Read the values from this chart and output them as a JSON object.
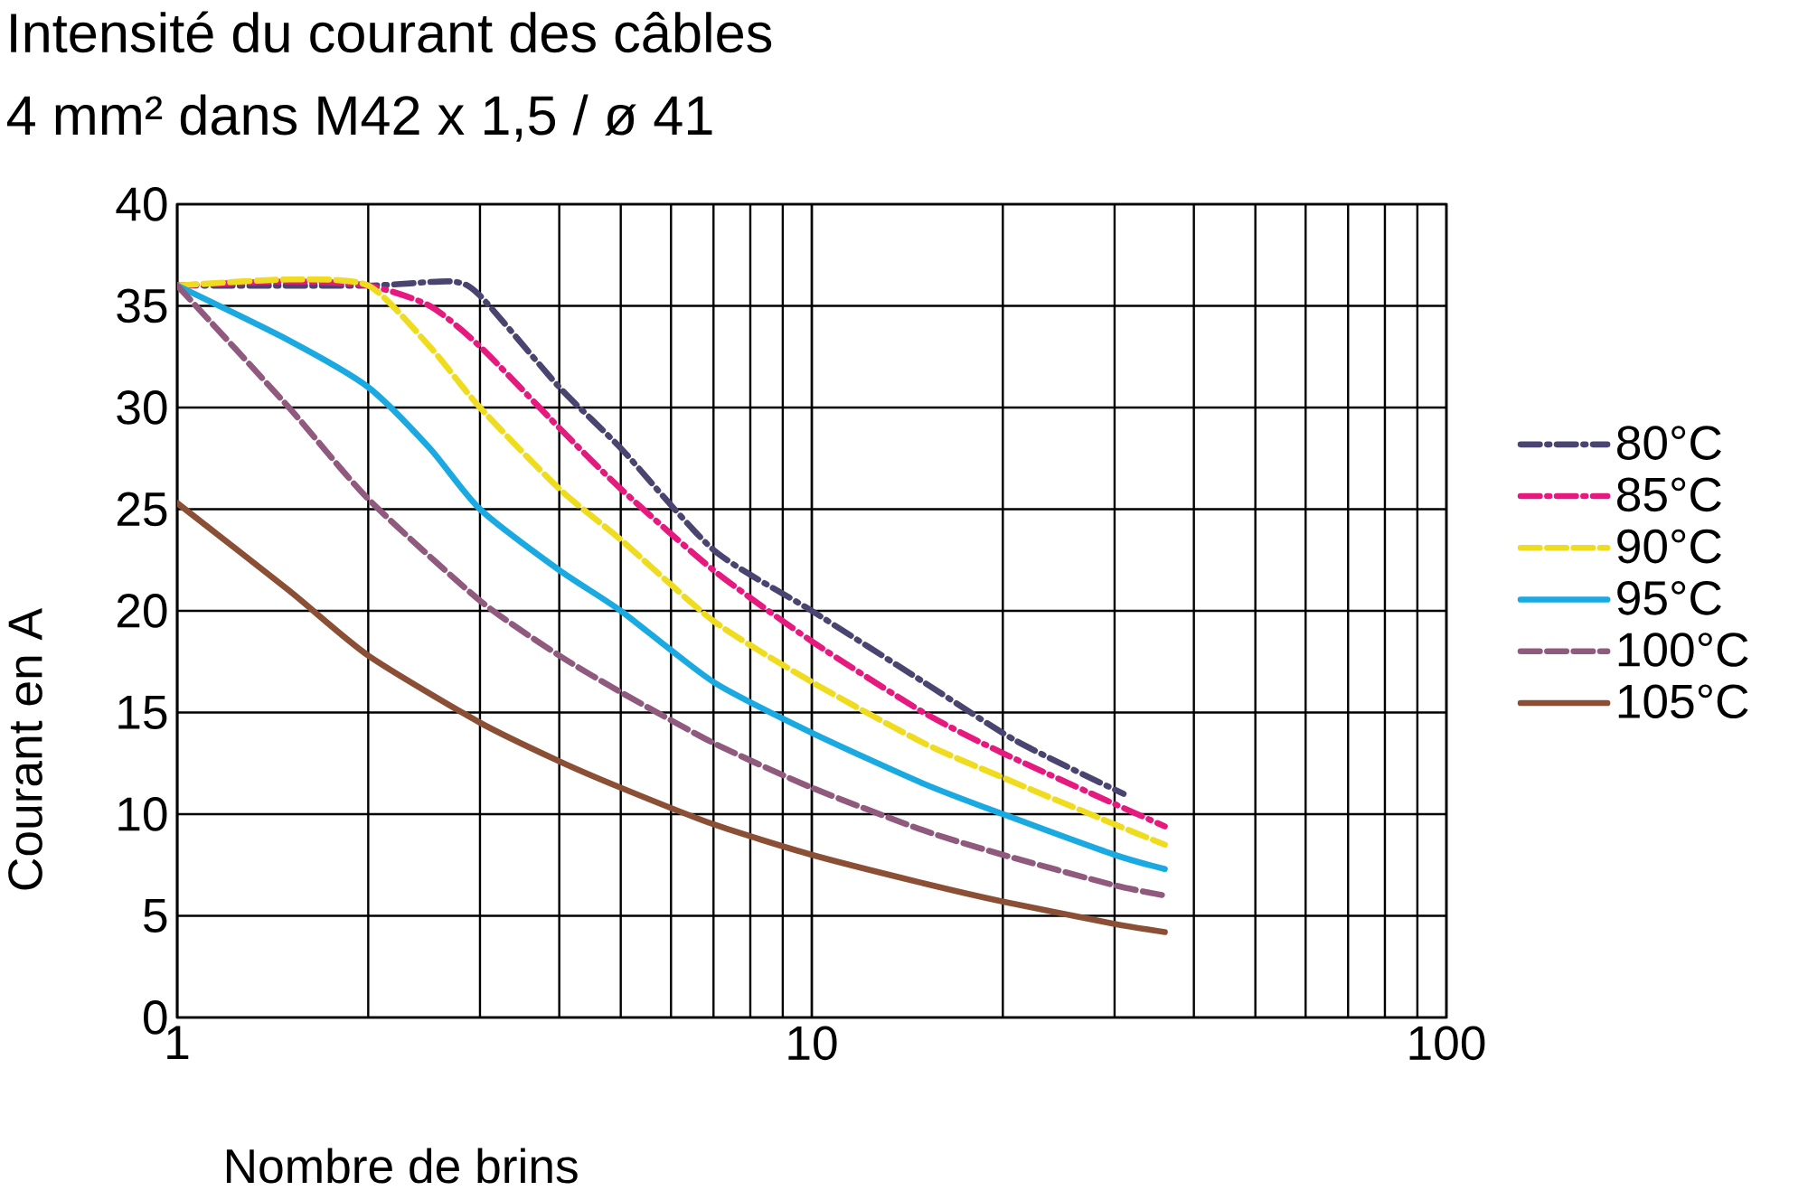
{
  "chart_data": {
    "type": "line",
    "title": "Intensité du courant des câbles",
    "subtitle": "4 mm² dans M42 x 1,5 / ø 41",
    "xlabel": "Nombre de brins",
    "ylabel": "Courant en A",
    "log": "x",
    "xlim": [
      1,
      100
    ],
    "xticks": [
      1,
      10,
      100
    ],
    "ylim": [
      0,
      40
    ],
    "yticks": [
      0,
      5,
      10,
      15,
      20,
      25,
      30,
      35,
      40
    ],
    "grid": true,
    "legend": "right",
    "series": [
      {
        "name": "80°C",
        "color": "#4a4570",
        "line_style": "dashdot",
        "x": [
          1,
          2,
          2.7,
          3,
          4,
          5,
          7,
          10,
          15,
          21,
          31
        ],
        "values": [
          36,
          36,
          36.2,
          35.5,
          31,
          28,
          23,
          20,
          16.5,
          13.6,
          11
        ]
      },
      {
        "name": "85°C",
        "color": "#e6197e",
        "line_style": "dashdot",
        "x": [
          1,
          1.5,
          2,
          2.5,
          3,
          4,
          5,
          7,
          10,
          15,
          20,
          30,
          36
        ],
        "values": [
          36,
          36.2,
          36,
          35,
          33,
          29,
          26,
          22,
          18.5,
          15,
          13,
          10.5,
          9.4
        ]
      },
      {
        "name": "90°C",
        "color": "#f0dc1e",
        "line_style": "dashed",
        "x": [
          1,
          1.5,
          2,
          2.5,
          3,
          4,
          5,
          7,
          10,
          15,
          20,
          30,
          36
        ],
        "values": [
          36,
          36.3,
          36,
          33,
          30,
          26,
          23.5,
          19.5,
          16.5,
          13.5,
          11.8,
          9.5,
          8.5
        ]
      },
      {
        "name": "95°C",
        "color": "#1ba9e1",
        "line_style": "solid",
        "x": [
          1,
          1.5,
          2,
          2.5,
          3,
          4,
          5,
          7,
          10,
          15,
          20,
          30,
          36
        ],
        "values": [
          36,
          33.3,
          31,
          28,
          25,
          22,
          20,
          16.5,
          14,
          11.5,
          10,
          8,
          7.3
        ]
      },
      {
        "name": "100°C",
        "color": "#8f5a7d",
        "line_style": "dashed",
        "x": [
          1,
          1.5,
          2,
          3,
          4,
          5,
          7,
          10,
          15,
          20,
          30,
          36
        ],
        "values": [
          36,
          30,
          25.5,
          20.5,
          17.8,
          16,
          13.5,
          11.3,
          9.2,
          8,
          6.5,
          6
        ]
      },
      {
        "name": "105°C",
        "color": "#8b4f36",
        "line_style": "solid",
        "x": [
          1,
          1.5,
          2,
          3,
          4,
          5,
          7,
          10,
          15,
          20,
          30,
          36
        ],
        "values": [
          25.3,
          21,
          17.8,
          14.5,
          12.6,
          11.3,
          9.5,
          8,
          6.6,
          5.7,
          4.6,
          4.2
        ]
      }
    ]
  }
}
